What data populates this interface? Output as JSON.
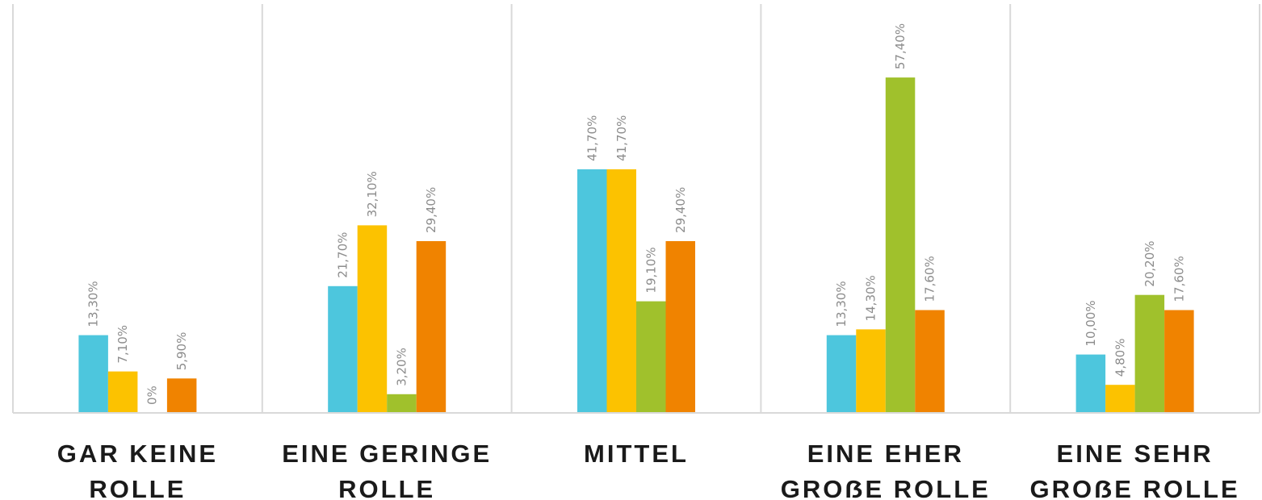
{
  "chart_data": {
    "type": "bar",
    "categories": [
      [
        "GAR KEINE",
        "ROLLE"
      ],
      [
        "EINE GERINGE",
        "ROLLE"
      ],
      [
        "MITTEL"
      ],
      [
        "EINE EHER",
        "GROẞE ROLLE"
      ],
      [
        "EINE SEHR",
        "GROẞE ROLLE"
      ]
    ],
    "series": [
      {
        "values": [
          13.3,
          21.7,
          41.7,
          13.3,
          10.0
        ],
        "labels": [
          "13,30%",
          "21,70%",
          "41,70%",
          "13,30%",
          "10,00%"
        ],
        "color": "#4dc6dd"
      },
      {
        "values": [
          7.1,
          32.1,
          41.7,
          14.3,
          4.8
        ],
        "labels": [
          "7,10%",
          "32,10%",
          "41,70%",
          "14,30%",
          "4,80%"
        ],
        "color": "#fcc200"
      },
      {
        "values": [
          0,
          3.2,
          19.1,
          57.4,
          20.2
        ],
        "labels": [
          "0%",
          "3,20%",
          "19,10%",
          "57,40%",
          "20,20%"
        ],
        "color": "#a0c12c"
      },
      {
        "values": [
          5.9,
          29.4,
          29.4,
          17.6,
          17.6
        ],
        "labels": [
          "5,90%",
          "29,40%",
          "29,40%",
          "17,60%",
          "17,60%"
        ],
        "color": "#f08300"
      }
    ],
    "ylim": [
      0,
      70
    ],
    "grid": false,
    "legend": "none",
    "xlabel": "",
    "ylabel": ""
  }
}
